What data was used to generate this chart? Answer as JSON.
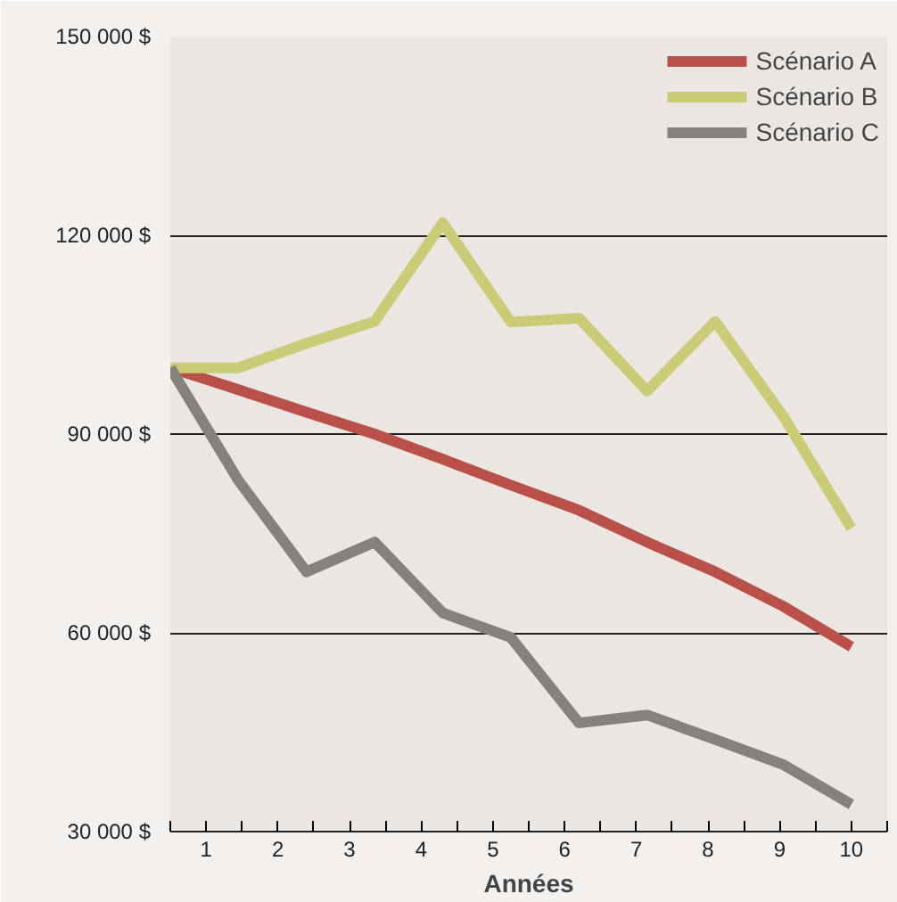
{
  "chart_data": {
    "type": "line",
    "xlabel": "Années",
    "x": [
      0.5,
      1.45,
      2.4,
      3.35,
      4.3,
      5.25,
      6.2,
      7.15,
      8.1,
      9.05,
      10
    ],
    "series": [
      {
        "name": "Scénario A",
        "color": "#b9504a",
        "values": [
          100000,
          96700,
          93300,
          90000,
          86200,
          82300,
          78500,
          73700,
          69200,
          64000,
          57900
        ]
      },
      {
        "name": "Scénario B",
        "color": "#c9cb76",
        "values": [
          100000,
          100000,
          103700,
          107000,
          121900,
          106900,
          107500,
          96500,
          107000,
          92700,
          75800
        ]
      },
      {
        "name": "Scénario C",
        "color": "#86817c",
        "values": [
          100000,
          83000,
          69200,
          73700,
          63000,
          59300,
          46400,
          47600,
          43900,
          40100,
          34100
        ]
      }
    ],
    "xlim": [
      0.5,
      10.5
    ],
    "xticks": [
      {
        "value": 0.5,
        "label": null
      },
      {
        "value": 1,
        "label": "1"
      },
      {
        "value": 1.5,
        "label": null
      },
      {
        "value": 2,
        "label": "2"
      },
      {
        "value": 2.5,
        "label": null
      },
      {
        "value": 3,
        "label": "3"
      },
      {
        "value": 3.5,
        "label": null
      },
      {
        "value": 4,
        "label": "4"
      },
      {
        "value": 4.5,
        "label": null
      },
      {
        "value": 5,
        "label": "5"
      },
      {
        "value": 5.5,
        "label": null
      },
      {
        "value": 6,
        "label": "6"
      },
      {
        "value": 6.5,
        "label": null
      },
      {
        "value": 7,
        "label": "7"
      },
      {
        "value": 7.5,
        "label": null
      },
      {
        "value": 8,
        "label": "8"
      },
      {
        "value": 8.5,
        "label": null
      },
      {
        "value": 9,
        "label": "9"
      },
      {
        "value": 9.5,
        "label": null
      },
      {
        "value": 10,
        "label": "10"
      },
      {
        "value": 10.5,
        "label": null
      }
    ],
    "ylim": [
      30000,
      150000
    ],
    "yticks": [
      {
        "value": 30000,
        "label": "30 000 $"
      },
      {
        "value": 60000,
        "label": "60 000 $"
      },
      {
        "value": 90000,
        "label": "90 000 $"
      },
      {
        "value": 120000,
        "label": "120 000 $"
      },
      {
        "value": 150000,
        "label": "150 000 $"
      }
    ],
    "grid": "y",
    "legend": "top right",
    "marker": "none",
    "line_style": "solid"
  }
}
